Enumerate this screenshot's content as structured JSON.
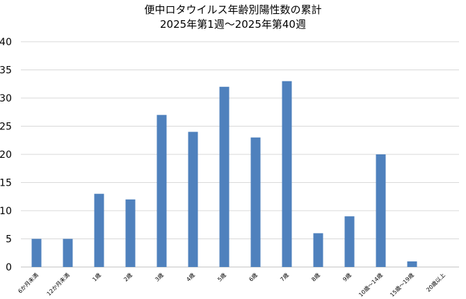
{
  "chart_data": {
    "type": "bar",
    "title": "便中ロタウイルス年齢別陽性数の累計",
    "subtitle": "2025年第1週～2025年第40週",
    "xlabel": "",
    "ylabel": "",
    "categories": [
      "6か月未満",
      "12か月未満",
      "1歳",
      "2歳",
      "3歳",
      "4歳",
      "5歳",
      "6歳",
      "7歳",
      "8歳",
      "9歳",
      "10歳～14歳",
      "15歳～19歳",
      "20歳以上"
    ],
    "series": [
      {
        "values": [
          5,
          5,
          13,
          12,
          27,
          24,
          32,
          23,
          33,
          6,
          9,
          20,
          1,
          0
        ]
      }
    ],
    "ylim": [
      0,
      40
    ],
    "yticks": [
      0,
      5,
      10,
      15,
      20,
      25,
      30,
      35,
      40
    ],
    "grid": true,
    "legend": "none",
    "bar_color": "#4f81bd",
    "grid_color": "#d9d9d9"
  }
}
